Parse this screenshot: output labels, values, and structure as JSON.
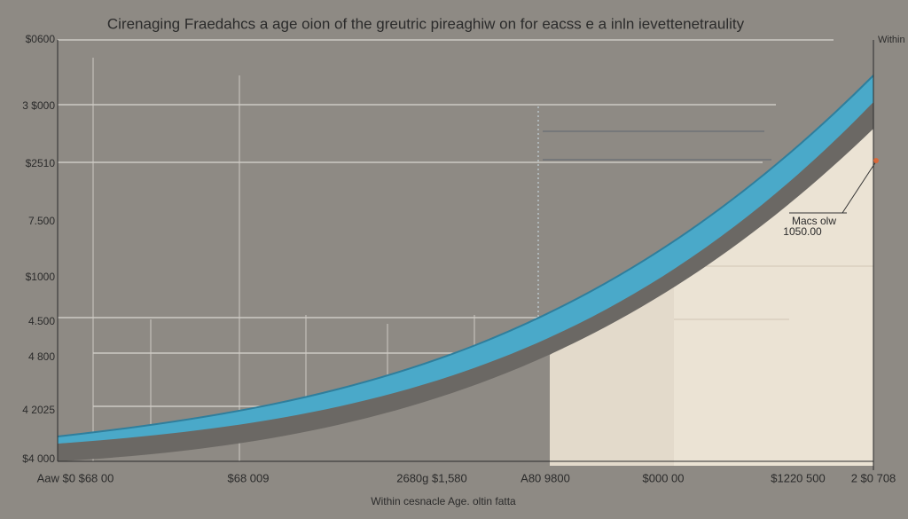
{
  "header": {
    "title": "Cirenaging Fraedahcs a age oion of the greutric pireaghiw on for eacss e a inln ievettenetraulity",
    "corner_label": "Within"
  },
  "axis": {
    "y_labels": [
      "$0600",
      "3 $000",
      "$2510",
      "7.500",
      "$1000",
      "4.500",
      "4 800",
      "4 2025",
      "$4 000"
    ],
    "x_labels": [
      "Aaw $0 $68 00",
      "$68 009",
      "2680g $1,580",
      "A80 9800",
      "$000 00",
      "$1220 500",
      "2 $0 708"
    ],
    "x_title": "Within cesnacle Age. oltin fatta"
  },
  "annotation": {
    "label": "Macs olw",
    "value": "1050.00"
  }
}
